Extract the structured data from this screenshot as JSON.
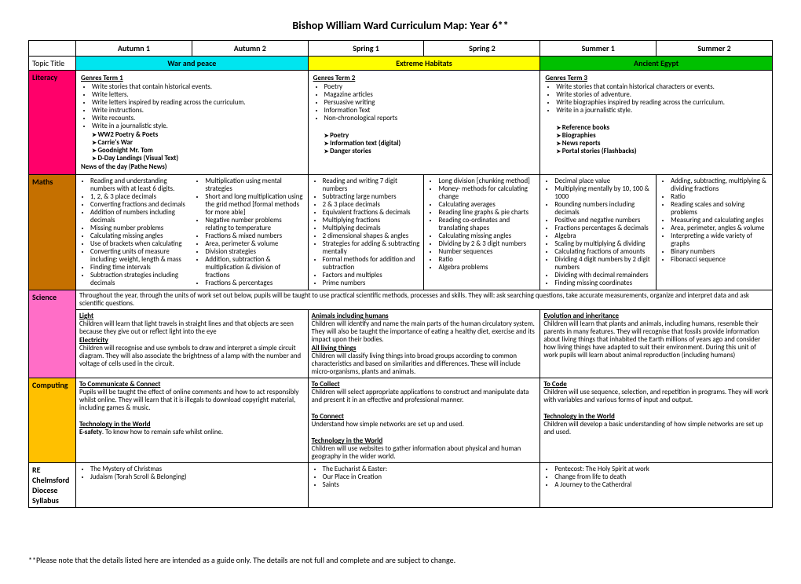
{
  "title": "Bishop William Ward Curriculum Map: Year 6**",
  "footnote": "**Please note that the details listed here are intended as a guide only.  The details are not full and complete and are subject to change.",
  "terms": [
    "Autumn 1",
    "Autumn 2",
    "Spring 1",
    "Spring 2",
    "Summer 1",
    "Summer 2"
  ],
  "topic_label": "Topic Title",
  "topics": {
    "autumn": "War and peace",
    "spring": "Extreme Habitats",
    "summer": "Ancient Egypt"
  },
  "rows_labels": {
    "literacy": "Literacy",
    "maths": "Maths",
    "science": "Science",
    "computing": "Computing",
    "re": "RE Chelmsford Diocese Syllabus"
  },
  "literacy": {
    "autumn": {
      "head": "Genres Term 1",
      "bullets": [
        "Write stories that contain historical events.",
        "Write letters.",
        "Write letters inspired by reading across the curriculum.",
        "Write instructions.",
        "Write recounts.",
        "Write in a journalistic style."
      ],
      "arrows": [
        "WW2 Poetry & Poets",
        "Carrie's War",
        "Goodnight Mr. Tom",
        "D-Day Landings (Visual Text)"
      ],
      "tail": "News of the day  (Pathe News)"
    },
    "spring": {
      "head": "Genres Term 2",
      "bullets": [
        "Poetry",
        "Magazine articles",
        "Persuasive writing",
        "Information Text",
        "Non-chronological reports"
      ],
      "arrows": [
        "Poetry",
        "Information text (digital)",
        "Danger stories"
      ]
    },
    "summer": {
      "head": "Genres Term 3",
      "bullets": [
        "Write stories that contain historical characters or events.",
        "Write stories of adventure.",
        " Write biographies inspired by reading across the curriculum.",
        "Write in a journalistic style."
      ],
      "arrows": [
        "Reference books",
        "Biographies",
        "News reports",
        "Portal stories (Flashbacks)"
      ]
    }
  },
  "maths": {
    "a1": [
      "Reading and understanding numbers with at least 6 digits.",
      "1, 2, & 3 place decimals",
      "Converting fractions and decimals",
      "Addition of numbers including decimals",
      "Missing number problems",
      "Calculating missing angles",
      "Use of brackets when calculating",
      "Converting units of measure including: weight, length & mass",
      "Finding time intervals",
      "Subtraction strategies including decimals"
    ],
    "a2": [
      "Multiplication using mental strategies",
      "Short and long multiplication using the grid method [formal methods for more able]",
      "Negative number problems relating to temperature",
      "Fractions & mixed numbers",
      "Area, perimeter & volume",
      "Division strategies",
      "Addition, subtraction & multiplication & division of fractions",
      "Fractions & percentages"
    ],
    "sp1": [
      "Reading and writing 7 digit numbers",
      "Subtracting large numbers",
      "2 & 3 place decimals",
      "Equivalent fractions & decimals",
      "Multiplying fractions",
      "Multiplying decimals",
      "2 dimensional shapes & angles",
      "Strategies for adding & subtracting mentally",
      "Formal methods for addition and subtraction",
      "Factors and multiples",
      "Prime numbers"
    ],
    "sp2": [
      "Long division [chunking method]",
      "Money- methods for calculating change",
      "Calculating averages",
      "Reading line graphs & pie charts",
      "Reading co-ordinates and translating shapes",
      "Calculating missing angles",
      "Dividing by 2 & 3 digit numbers",
      "Number sequences",
      "Ratio",
      "Algebra problems"
    ],
    "su1": [
      "Decimal place value",
      "Multiplying mentally by 10, 100 & 1000",
      "Rounding numbers including decimals",
      "Positive and negative numbers",
      "Fractions percentages & decimals",
      "Algebra",
      "Scaling by multiplying & dividing",
      "Calculating fractions of amounts",
      "Dividing 4 digit numbers by 2 digit numbers",
      "Dividing with decimal remainders",
      "Finding missing coordinates"
    ],
    "su2": [
      "Adding, subtracting, multiplying & dividing fractions",
      "Ratio",
      "Reading scales and solving problems",
      "Measuring and calculating angles",
      "Area, perimeter, angles & volume",
      "Interpreting a wide variety of graphs",
      "Binary numbers",
      "Fibonacci sequence"
    ]
  },
  "science": {
    "intro": "Throughout the year, through the units of work set out below, pupils will be taught to use practical scientific methods, processes and skills. They will: ask searching questions, take accurate measurements, organize and interpret data and ask scientific questions.",
    "autumn": {
      "h1": "Light",
      "p1": "Children will learn  that light travels in straight lines and that objects are seen because they give out or reflect light into the eye",
      "h2": "Electricity",
      "p2": "Children will recognise and use symbols to draw and interpret a simple circuit diagram. They will also associate the brightness of a lamp with the number and voltage of cells used in the circuit."
    },
    "spring": {
      "h1": "Animals including humans",
      "p1": "Children will identify and name the main parts of the human circulatory system. They will also be taught the importance of  eating a healthy diet, exercise and its impact upon their bodies.",
      "h2": "All living things",
      "p2": "Children will classify living things into broad groups according to common  characteristics and based on similarities and differences. These will include micro-organisms, plants and animals."
    },
    "summer": {
      "h1": "Evolution and inheritance",
      "p1": "Children will learn that plants and animals, including humans, resemble their parents in many features. They will recognise that fossils provide information about living things that inhabited the Earth millions of years ago and consider how living things have adapted to suit their environment.  During this unit of work pupils will learn about animal reproduction (including humans)"
    }
  },
  "computing": {
    "autumn": {
      "h1": "To Communicate & Connect",
      "p1": "Pupils will  be taught the effect of online comments and how to act responsibly whilst online. They will learn that it is illegals to download copyright material, including games & music.",
      "h2": "Technology in the World",
      "p2": "E-safety. To know how to remain safe whilst online."
    },
    "spring": {
      "h1": "To Collect",
      "p1": "Children will select appropriate applications to construct and manipulate data and present it in an effective and professional manner.",
      "h2": "To Connect",
      "p2": "Understand how simple networks are set up and used.",
      "h3": "Technology in the World",
      "p3": "Children will use websites to gather information about physical and human geography in the wider world."
    },
    "summer": {
      "h1": "To Code",
      "p1": "Children will use sequence, selection, and repetition in programs. They will work with variables and various forms of input and output.",
      "h2": "Technology in the World",
      "p2": "Children will develop a basic understanding of how simple networks are set up and used."
    }
  },
  "re": {
    "autumn": [
      "The Mystery of Christmas",
      "Judaism (Torah Scroll & Belonging)"
    ],
    "spring": [
      "The Eucharist &  Easter:",
      "Our Place in Creation",
      "Saints"
    ],
    "summer": [
      "Pentecost: The Holy Spirit at work",
      "Change from life to death",
      "A Journey to the Catherdral"
    ]
  }
}
